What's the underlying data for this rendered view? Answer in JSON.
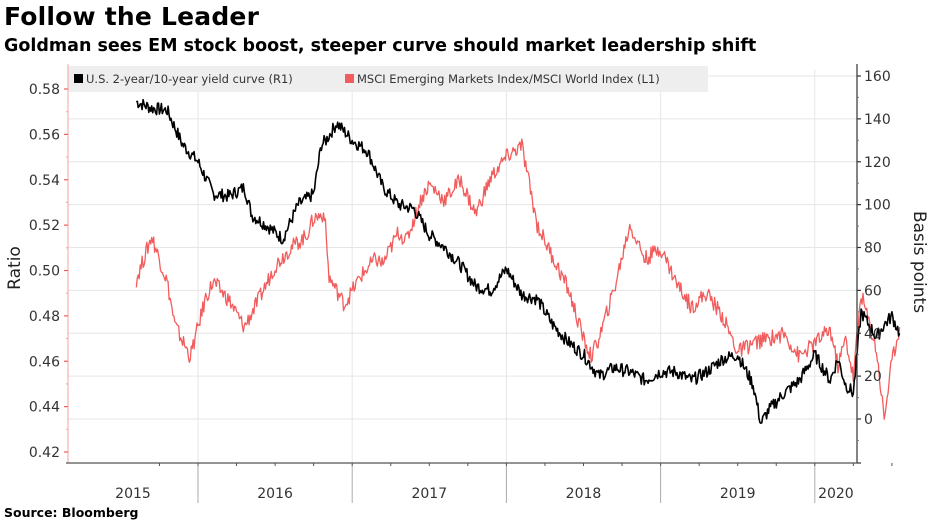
{
  "title": "Follow the Leader",
  "subtitle": "Goldman sees EM stock boost, steeper curve should market leadership shift",
  "source": "Source: Bloomberg",
  "chart_data": {
    "type": "line",
    "title": "Follow the Leader",
    "subtitle": "Goldman sees EM stock boost, steeper curve should market leadership shift",
    "xlabel": "",
    "x_range": [
      2015.6,
      2020.6
    ],
    "x_tick_labels": [
      "2015",
      "2016",
      "2017",
      "2018",
      "2019",
      "2020"
    ],
    "left_axis": {
      "label": "Ratio",
      "range": [
        0.42,
        0.58
      ],
      "ticks": [
        "0.42",
        "0.44",
        "0.46",
        "0.48",
        "0.50",
        "0.52",
        "0.54",
        "0.56",
        "0.58"
      ],
      "color": "#f25c5c"
    },
    "right_axis": {
      "label": "Basis points",
      "range": [
        -20,
        160
      ],
      "ticks": [
        "0",
        "20",
        "40",
        "60",
        "80",
        "100",
        "120",
        "140",
        "160"
      ],
      "color": "#000000"
    },
    "grid": true,
    "legend_position": "top-left",
    "series": [
      {
        "name": "U.S. 2-year/10-year yield curve (R1)",
        "axis": "right",
        "color": "#000000",
        "x": [
          2015.6,
          2015.7,
          2015.8,
          2015.9,
          2016.0,
          2016.1,
          2016.2,
          2016.3,
          2016.35,
          2016.45,
          2016.55,
          2016.65,
          2016.75,
          2016.8,
          2016.83,
          2016.9,
          2017.0,
          2017.1,
          2017.2,
          2017.3,
          2017.4,
          2017.5,
          2017.6,
          2017.7,
          2017.8,
          2017.9,
          2018.0,
          2018.1,
          2018.2,
          2018.3,
          2018.4,
          2018.5,
          2018.6,
          2018.7,
          2018.8,
          2018.9,
          2019.0,
          2019.1,
          2019.2,
          2019.3,
          2019.4,
          2019.5,
          2019.6,
          2019.65,
          2019.7,
          2019.8,
          2019.9,
          2020.0,
          2020.1,
          2020.15,
          2020.2,
          2020.25,
          2020.3,
          2020.4,
          2020.45,
          2020.5,
          2020.55
        ],
        "values": [
          148,
          145,
          144,
          128,
          120,
          105,
          104,
          108,
          95,
          90,
          84,
          100,
          105,
          128,
          130,
          138,
          130,
          125,
          108,
          100,
          98,
          86,
          80,
          72,
          62,
          60,
          70,
          58,
          56,
          44,
          36,
          30,
          20,
          24,
          22,
          18,
          22,
          22,
          18,
          22,
          28,
          30,
          16,
          -2,
          4,
          12,
          18,
          30,
          18,
          28,
          16,
          12,
          50,
          38,
          44,
          48,
          40
        ],
        "values_note": "basis points, right axis"
      },
      {
        "name": "MSCI Emerging Markets Index/MSCI World Index (L1)",
        "axis": "left",
        "color": "#f25c5c",
        "x": [
          2015.6,
          2015.7,
          2015.8,
          2015.85,
          2015.95,
          2016.05,
          2016.1,
          2016.2,
          2016.3,
          2016.4,
          2016.5,
          2016.6,
          2016.7,
          2016.75,
          2016.82,
          2016.85,
          2016.95,
          2017.05,
          2017.15,
          2017.2,
          2017.3,
          2017.35,
          2017.45,
          2017.5,
          2017.6,
          2017.7,
          2017.8,
          2017.9,
          2018.0,
          2018.1,
          2018.2,
          2018.3,
          2018.4,
          2018.5,
          2018.55,
          2018.6,
          2018.7,
          2018.8,
          2018.9,
          2019.0,
          2019.1,
          2019.2,
          2019.3,
          2019.4,
          2019.5,
          2019.6,
          2019.7,
          2019.8,
          2019.9,
          2020.0,
          2020.1,
          2020.15,
          2020.2,
          2020.25,
          2020.3,
          2020.4,
          2020.45,
          2020.5,
          2020.55
        ],
        "values": [
          0.496,
          0.515,
          0.495,
          0.476,
          0.462,
          0.488,
          0.495,
          0.487,
          0.475,
          0.488,
          0.502,
          0.51,
          0.515,
          0.523,
          0.525,
          0.497,
          0.485,
          0.497,
          0.505,
          0.503,
          0.517,
          0.513,
          0.532,
          0.538,
          0.531,
          0.54,
          0.525,
          0.541,
          0.55,
          0.555,
          0.52,
          0.506,
          0.492,
          0.47,
          0.462,
          0.47,
          0.492,
          0.52,
          0.505,
          0.51,
          0.495,
          0.484,
          0.49,
          0.48,
          0.464,
          0.468,
          0.47,
          0.472,
          0.462,
          0.468,
          0.474,
          0.458,
          0.47,
          0.453,
          0.49,
          0.465,
          0.435,
          0.46,
          0.475
        ],
        "values_note": "ratio, left axis"
      }
    ]
  }
}
